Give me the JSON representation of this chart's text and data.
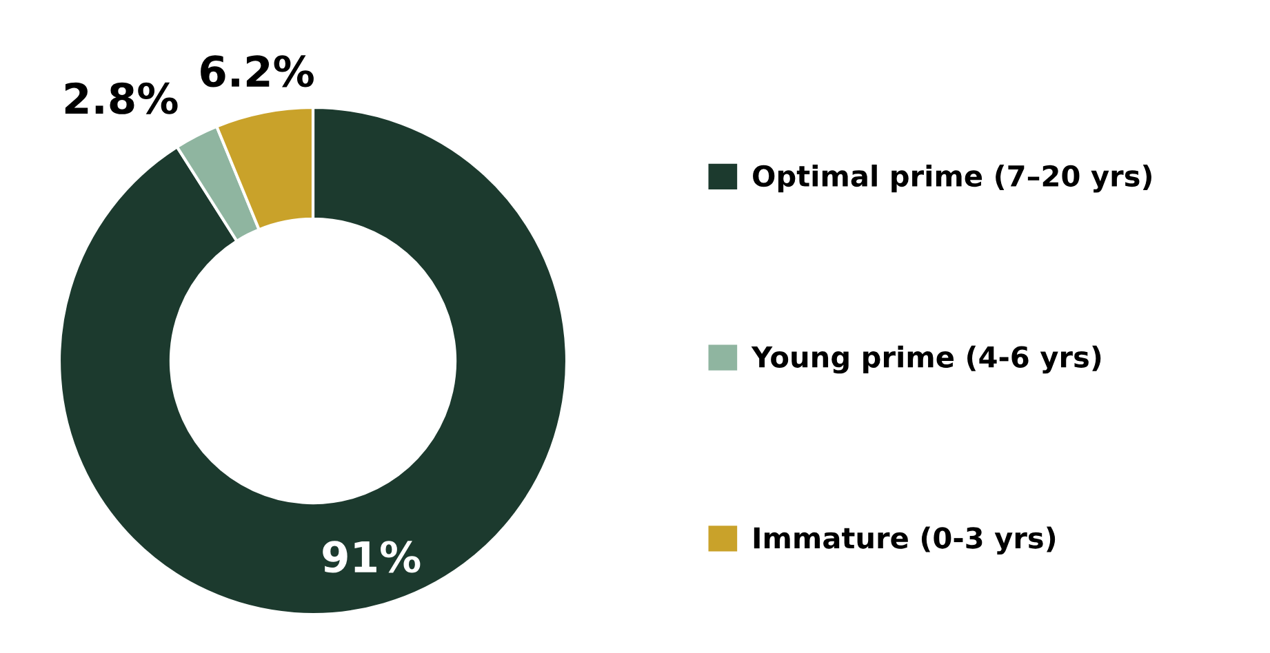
{
  "chart_data": {
    "type": "donut",
    "categories": [
      "Optimal prime (7–20 yrs)",
      "Young prime (4-6 yrs)",
      "Immature (0-3 yrs)"
    ],
    "values": [
      91,
      2.8,
      6.2
    ],
    "colors": [
      "#1c3a2e",
      "#8fb5a0",
      "#c9a22a"
    ],
    "value_labels": [
      "91%",
      "2.8%",
      "6.2%"
    ],
    "legend": "right"
  }
}
